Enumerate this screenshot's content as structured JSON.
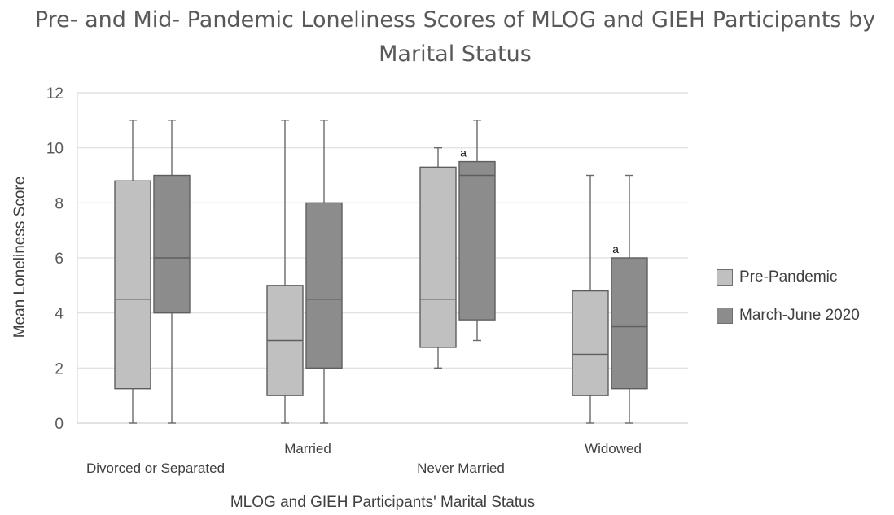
{
  "chart_data": {
    "type": "boxplot",
    "title": "Pre- and Mid- Pandemic Loneliness Scores of MLOG and GIEH Participants by Marital Status",
    "xlabel": "MLOG and GIEH Participants' Marital Status",
    "ylabel": "Mean Loneliness Score",
    "ylim": [
      0,
      12
    ],
    "yticks": [
      0,
      2,
      4,
      6,
      8,
      10,
      12
    ],
    "grid": true,
    "legend_position": "right",
    "categories": [
      "Divorced or Separated",
      "Married",
      "Never Married",
      "Widowed"
    ],
    "series": [
      {
        "name": "Pre-Pandemic",
        "color": "#c0c0c0",
        "boxes": [
          {
            "min": 0,
            "q1": 1.25,
            "median": 4.5,
            "q3": 8.8,
            "max": 11
          },
          {
            "min": 0,
            "q1": 1,
            "median": 3,
            "q3": 5,
            "max": 11
          },
          {
            "min": 2,
            "q1": 2.75,
            "median": 4.5,
            "q3": 9.3,
            "max": 10
          },
          {
            "min": 0,
            "q1": 1,
            "median": 2.5,
            "q3": 4.8,
            "max": 9
          }
        ]
      },
      {
        "name": "March-June 2020",
        "color": "#8c8c8c",
        "boxes": [
          {
            "min": 0,
            "q1": 4,
            "median": 6,
            "q3": 9,
            "max": 11
          },
          {
            "min": 0,
            "q1": 2,
            "median": 4.5,
            "q3": 8,
            "max": 11
          },
          {
            "min": 3,
            "q1": 3.75,
            "median": 9,
            "q3": 9.5,
            "max": 11
          },
          {
            "min": 0,
            "q1": 1.25,
            "median": 3.5,
            "q3": 6,
            "max": 9
          }
        ]
      }
    ],
    "annotations": [
      {
        "text": "a",
        "category": "Never Married",
        "series": "March-June 2020"
      },
      {
        "text": "a",
        "category": "Widowed",
        "series": "March-June 2020"
      }
    ]
  }
}
